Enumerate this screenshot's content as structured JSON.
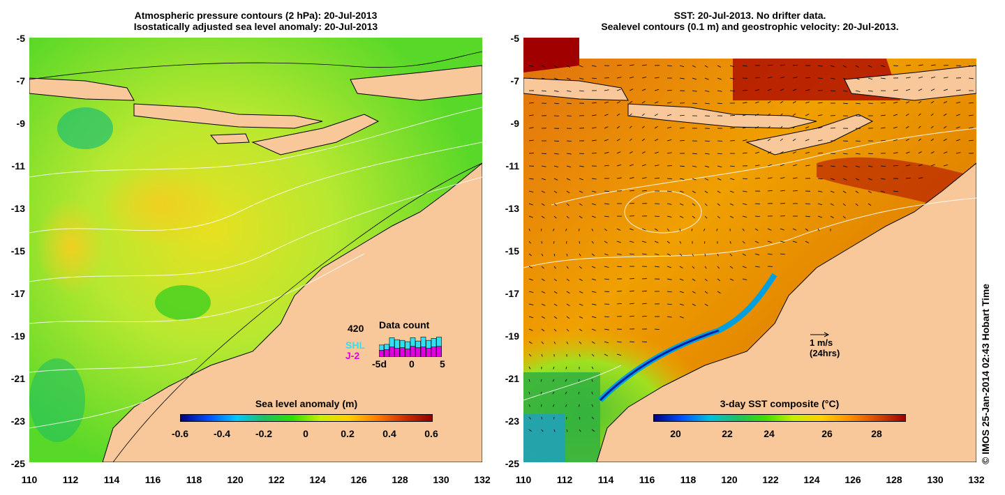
{
  "left_panel": {
    "title_line1": "Atmospheric pressure contours (2 hPa): 20-Jul-2013",
    "title_line2": "Isostatically adjusted sea level anomaly: 20-Jul-2013",
    "colorbar": {
      "title": "Sea level anomaly (m)",
      "ticks": [
        "-0.6",
        "-0.4",
        "-0.2",
        "0",
        "0.2",
        "0.4",
        "0.6"
      ],
      "colors": [
        "#00007f",
        "#0050ff",
        "#00c8ff",
        "#20c060",
        "#30e000",
        "#c8f000",
        "#ffd000",
        "#ff8000",
        "#d03000",
        "#900000"
      ]
    },
    "data_count": {
      "title": "Data count",
      "max_label": "420",
      "series": [
        {
          "name": "SHL",
          "color": "#30e0f0",
          "values": [
            180,
            190,
            290,
            260,
            250,
            230,
            290,
            240,
            300,
            250,
            280,
            300
          ]
        },
        {
          "name": "J-2",
          "color": "#e000e0",
          "values": [
            100,
            110,
            150,
            130,
            140,
            120,
            160,
            140,
            150,
            130,
            150,
            160
          ]
        }
      ],
      "x_ticks": [
        "-5d",
        "0",
        "5"
      ]
    }
  },
  "right_panel": {
    "title_line1": "SST: 20-Jul-2013. No drifter data.",
    "title_line2": "Sealevel contours (0.1 m) and geostrophic velocity: 20-Jul-2013.",
    "colorbar": {
      "title": "3-day SST composite (°C)",
      "ticks": [
        "20",
        "22",
        "24",
        "26",
        "28"
      ],
      "colors": [
        "#00007f",
        "#0050ff",
        "#00c0e0",
        "#20c060",
        "#40e000",
        "#c8f000",
        "#ffd000",
        "#ff9000",
        "#d84800",
        "#a00000"
      ]
    },
    "scale_arrow": {
      "speed": "1 m/s",
      "duration": "(24hrs)"
    }
  },
  "axes": {
    "lat_labels": [
      "-5",
      "-7",
      "-9",
      "-11",
      "-13",
      "-15",
      "-17",
      "-19",
      "-21",
      "-23",
      "-25"
    ],
    "lon_labels": [
      "110",
      "112",
      "114",
      "116",
      "118",
      "120",
      "122",
      "124",
      "126",
      "128",
      "130",
      "132"
    ]
  },
  "credit": "© IMOS 25-Jan-2014 02:43 Hobart Time",
  "colors": {
    "land": "#f8c89a",
    "coast": "#000000",
    "contour": "#ffffff"
  }
}
